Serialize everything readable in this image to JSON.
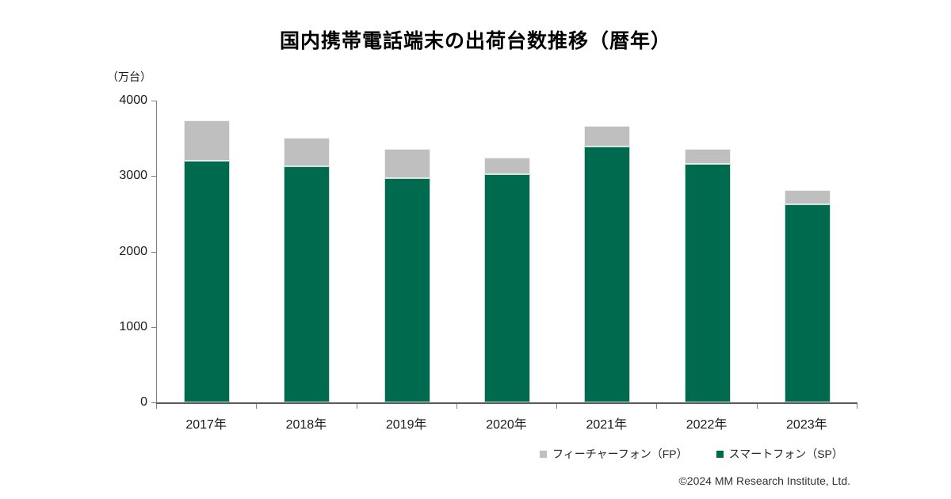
{
  "page": {
    "footer": "©2024 MM Research Institute, Ltd."
  },
  "chart_data": {
    "type": "bar",
    "stacked": true,
    "title": "国内携帯電話端末の出荷台数推移（暦年）",
    "unit_label": "（万台）",
    "categories": [
      "2017年",
      "2018年",
      "2019年",
      "2020年",
      "2021年",
      "2022年",
      "2023年"
    ],
    "series": [
      {
        "name": "スマートフォン（SP）",
        "color": "#006a4f",
        "values": [
          3200,
          3130,
          2970,
          3025,
          3395,
          3165,
          2630
        ]
      },
      {
        "name": "フィーチャーフォン（FP）",
        "color": "#bfbfbf",
        "values": [
          535,
          375,
          385,
          220,
          270,
          200,
          185
        ]
      }
    ],
    "legend": [
      {
        "label": "フィーチャーフォン（FP）",
        "color": "#bfbfbf"
      },
      {
        "label": "スマートフォン（SP）",
        "color": "#006a4f"
      }
    ],
    "y_axis": {
      "min": 0,
      "max": 4000,
      "tick_interval": 1000,
      "ticks": [
        0,
        1000,
        2000,
        3000,
        4000
      ]
    },
    "x_axis": {
      "label": ""
    },
    "grid": false,
    "legend_position": "bottom-right",
    "background": "#ffffff"
  }
}
